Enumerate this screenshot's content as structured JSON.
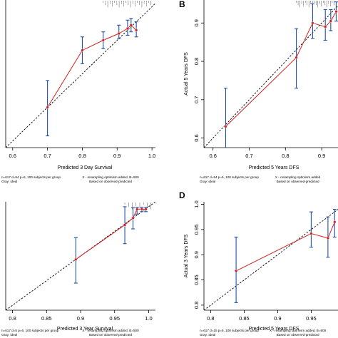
{
  "chart_data": [
    {
      "panel": "A",
      "type": "line",
      "xlabel": "Predicted  3 Day Survival",
      "ylabel": "",
      "xlim": [
        0.58,
        1.01
      ],
      "ylim": [
        0.58,
        1.02
      ],
      "xticks": [
        0.6,
        0.7,
        0.8,
        0.9,
        1.0
      ],
      "yticks": [],
      "grid": false,
      "footnote_left": [
        "n=617 d=94 p=6, 100 subjects per group",
        "Gray: ideal"
      ],
      "footnote_right": [
        "X - resampling optimism added, B=500",
        "Based on observed-predicted"
      ],
      "series": [
        {
          "x": [
            0.7,
            0.8,
            0.86,
            0.905,
            0.93,
            0.94,
            0.955
          ],
          "y": [
            0.7,
            0.87,
            0.9,
            0.92,
            0.935,
            0.945,
            0.93
          ],
          "lower": [
            0.615,
            0.83,
            0.875,
            0.905,
            0.915,
            0.925,
            0.91
          ],
          "upper": [
            0.78,
            0.91,
            0.925,
            0.945,
            0.96,
            0.965,
            0.955
          ]
        }
      ],
      "rug_count": 22
    },
    {
      "panel": "B",
      "type": "line",
      "xlabel": "Predicted 5 Years DFS",
      "ylabel": "Actual 5 Years DFS",
      "xlim": [
        0.575,
        0.945
      ],
      "ylim": [
        0.575,
        0.96
      ],
      "xticks": [
        0.6,
        0.7,
        0.8,
        0.9
      ],
      "yticks": [
        0.6,
        0.7,
        0.8,
        0.9
      ],
      "grid": false,
      "footnote_left": [
        "n=617 d=94 p=6, 100 subjects per group",
        "Gray: ideal"
      ],
      "footnote_right": [
        "X - resampling optimism added",
        "Based on observed-predicted"
      ],
      "series": [
        {
          "x": [
            0.635,
            0.83,
            0.875,
            0.91,
            0.925,
            0.94
          ],
          "y": [
            0.63,
            0.81,
            0.9,
            0.89,
            0.905,
            0.93
          ],
          "lower": [
            0.565,
            0.73,
            0.86,
            0.855,
            0.88,
            0.905
          ],
          "upper": [
            0.73,
            0.885,
            0.95,
            0.935,
            0.935,
            0.955
          ]
        }
      ],
      "rug_count": 22
    },
    {
      "panel": "C",
      "type": "line",
      "xlabel": "Predicted  3 Year Survival",
      "ylabel": "",
      "xlim": [
        0.79,
        1.01
      ],
      "ylim": [
        0.79,
        1.01
      ],
      "xticks": [
        0.8,
        0.85,
        0.9,
        0.95,
        1.0
      ],
      "yticks": [],
      "grid": false,
      "footnote_left": [
        "n=617 d=5 p=6, 100 subjects per group",
        "Gray: ideal"
      ],
      "footnote_right": [
        "X - resampling optimism added, B=500",
        "Based on observed-predicted"
      ],
      "series": [
        {
          "x": [
            0.893,
            0.965,
            0.977,
            0.983,
            0.99,
            0.996
          ],
          "y": [
            0.893,
            0.963,
            0.977,
            0.995,
            0.995,
            0.995
          ],
          "lower": [
            0.845,
            0.925,
            0.955,
            0.985,
            0.99,
            0.99
          ],
          "upper": [
            0.937,
            1.0,
            0.998,
            0.999,
            0.999,
            0.999
          ]
        }
      ],
      "rug_count": 8
    },
    {
      "panel": "D",
      "type": "line",
      "xlabel": "Predicted 5 Years DFS",
      "ylabel": "Actual 3 Years DFS",
      "xlim": [
        0.79,
        0.99
      ],
      "ylim": [
        0.79,
        1.005
      ],
      "xticks": [
        0.8,
        0.85,
        0.9,
        0.95
      ],
      "yticks": [
        0.8,
        0.85,
        0.9,
        0.95,
        1.0
      ],
      "grid": false,
      "footnote_left": [
        "n=617 d=15 p=6, 100 subjects per group",
        "Gray: ideal"
      ],
      "footnote_right": [
        "X - resampling optimism added, B=500",
        "Based on observed-predicted"
      ],
      "series": [
        {
          "x": [
            0.838,
            0.95,
            0.975,
            0.985
          ],
          "y": [
            0.868,
            0.942,
            0.933,
            0.965
          ],
          "lower": [
            0.805,
            0.915,
            0.895,
            0.935
          ],
          "upper": [
            0.935,
            0.985,
            0.975,
            0.99
          ]
        }
      ],
      "rug_count": 0
    }
  ],
  "colors": {
    "apparent": "#d42020",
    "errbar": "#2050a8",
    "ideal": "#000000"
  }
}
